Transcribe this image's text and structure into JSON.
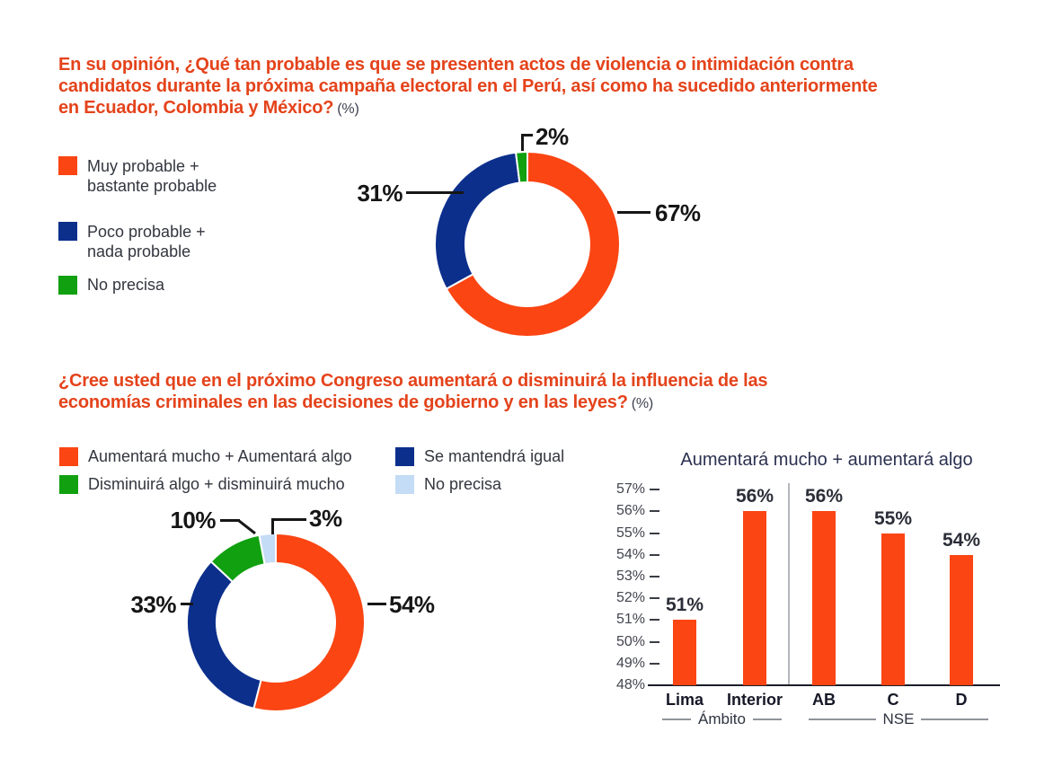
{
  "q1": {
    "title_lines": [
      "En su opinión, ¿Qué tan probable es que se presenten actos de violencia o intimidación contra",
      "candidatos durante la próxima campaña electoral en el Perú, así como ha sucedido anteriormente",
      "en Ecuador, Colombia y México?"
    ],
    "unit_suffix": "(%)",
    "legend": [
      {
        "label": "Muy probable +\nbastante probable",
        "color": "#FB4513"
      },
      {
        "label": "Poco probable +\nnada probable",
        "color": "#0C2F8C"
      },
      {
        "label": "No precisa",
        "color": "#10A010"
      }
    ]
  },
  "q2": {
    "title_lines": [
      "¿Cree usted que en el próximo Congreso aumentará o disminuirá la influencia de las",
      "economías criminales en las decisiones de gobierno y en las leyes?"
    ],
    "unit_suffix": "(%)",
    "legend": [
      {
        "label": "Aumentará mucho + Aumentará algo",
        "color": "#FB4513"
      },
      {
        "label": "Disminuirá algo + disminuirá mucho",
        "color": "#10A010"
      },
      {
        "label": "Se mantendrá igual",
        "color": "#0C2F8C"
      },
      {
        "label": "No precisa",
        "color": "#C4DCF5"
      }
    ]
  },
  "chart_data": [
    {
      "type": "donut",
      "slices": [
        {
          "label": "Muy probable + bastante probable",
          "value": 67,
          "display": "67%",
          "color": "#FB4513"
        },
        {
          "label": "Poco probable + nada probable",
          "value": 31,
          "display": "31%",
          "color": "#0C2F8C"
        },
        {
          "label": "No precisa",
          "value": 2,
          "display": "2%",
          "color": "#10A010"
        }
      ]
    },
    {
      "type": "donut",
      "slices": [
        {
          "label": "Aumentará mucho + Aumentará algo",
          "value": 54,
          "display": "54%",
          "color": "#FB4513"
        },
        {
          "label": "Se mantendrá igual",
          "value": 33,
          "display": "33%",
          "color": "#0C2F8C"
        },
        {
          "label": "Disminuirá algo + disminuirá mucho",
          "value": 10,
          "display": "10%",
          "color": "#10A010"
        },
        {
          "label": "No precisa",
          "value": 3,
          "display": "3%",
          "color": "#C4DCF5"
        }
      ]
    },
    {
      "type": "bar",
      "title": "Aumentará mucho + aumentará algo",
      "categories": [
        "Lima",
        "Interior",
        "AB",
        "C",
        "D"
      ],
      "values": [
        51,
        56,
        56,
        55,
        54
      ],
      "display_values": [
        "51%",
        "56%",
        "56%",
        "55%",
        "54%"
      ],
      "groups": [
        {
          "label": "Ámbito",
          "categories": [
            "Lima",
            "Interior"
          ]
        },
        {
          "label": "NSE",
          "categories": [
            "AB",
            "C",
            "D"
          ]
        }
      ],
      "ylim": [
        48,
        57
      ],
      "ytick_labels": [
        "57%",
        "56%",
        "55%",
        "54%",
        "53%",
        "52%",
        "51%",
        "50%",
        "49%",
        "48%"
      ],
      "bar_color": "#FB4513",
      "grid": false,
      "legend_position": "none"
    }
  ]
}
